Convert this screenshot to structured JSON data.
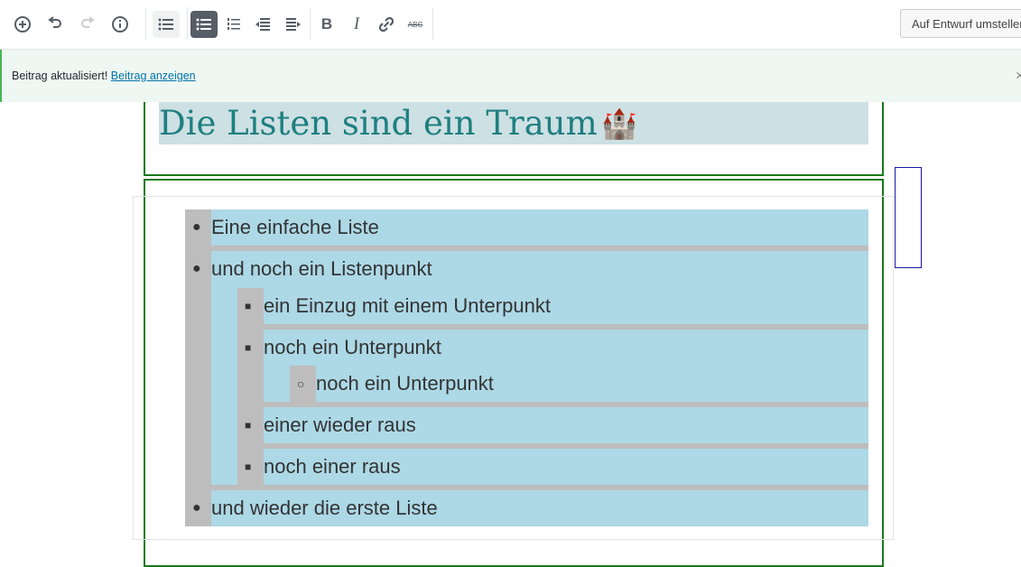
{
  "toolbar": {
    "icons": [
      "add-block-icon",
      "undo-icon",
      "redo-icon",
      "info-icon",
      "list-block-icon",
      "unordered-list-icon",
      "ordered-list-icon",
      "outdent-icon",
      "indent-icon",
      "bold-icon",
      "italic-icon",
      "link-icon",
      "strikethrough-icon"
    ],
    "bold": "B",
    "italic": "I",
    "strike": "ABC",
    "draft_button": "Auf Entwurf umstellen"
  },
  "notice": {
    "message": "Beitrag aktualisiert!",
    "link": "Beitrag anzeigen"
  },
  "heading": {
    "text": "Die Listen sind ein Traum",
    "emoji": "🏰"
  },
  "list": {
    "items": [
      "Eine einfache Liste",
      "und noch ein Listenpunkt",
      "ein Einzug mit einem Unterpunkt",
      "noch ein Unterpunkt",
      "noch ein Unterpunkt",
      "einer wieder raus",
      "noch einer raus",
      "und wieder die erste Liste"
    ]
  },
  "colors": {
    "heading": "#1e7f80",
    "list_bg": "#add8e6",
    "list_marker_bg": "#bdbdbd",
    "block_border": "#1a7a1a"
  }
}
